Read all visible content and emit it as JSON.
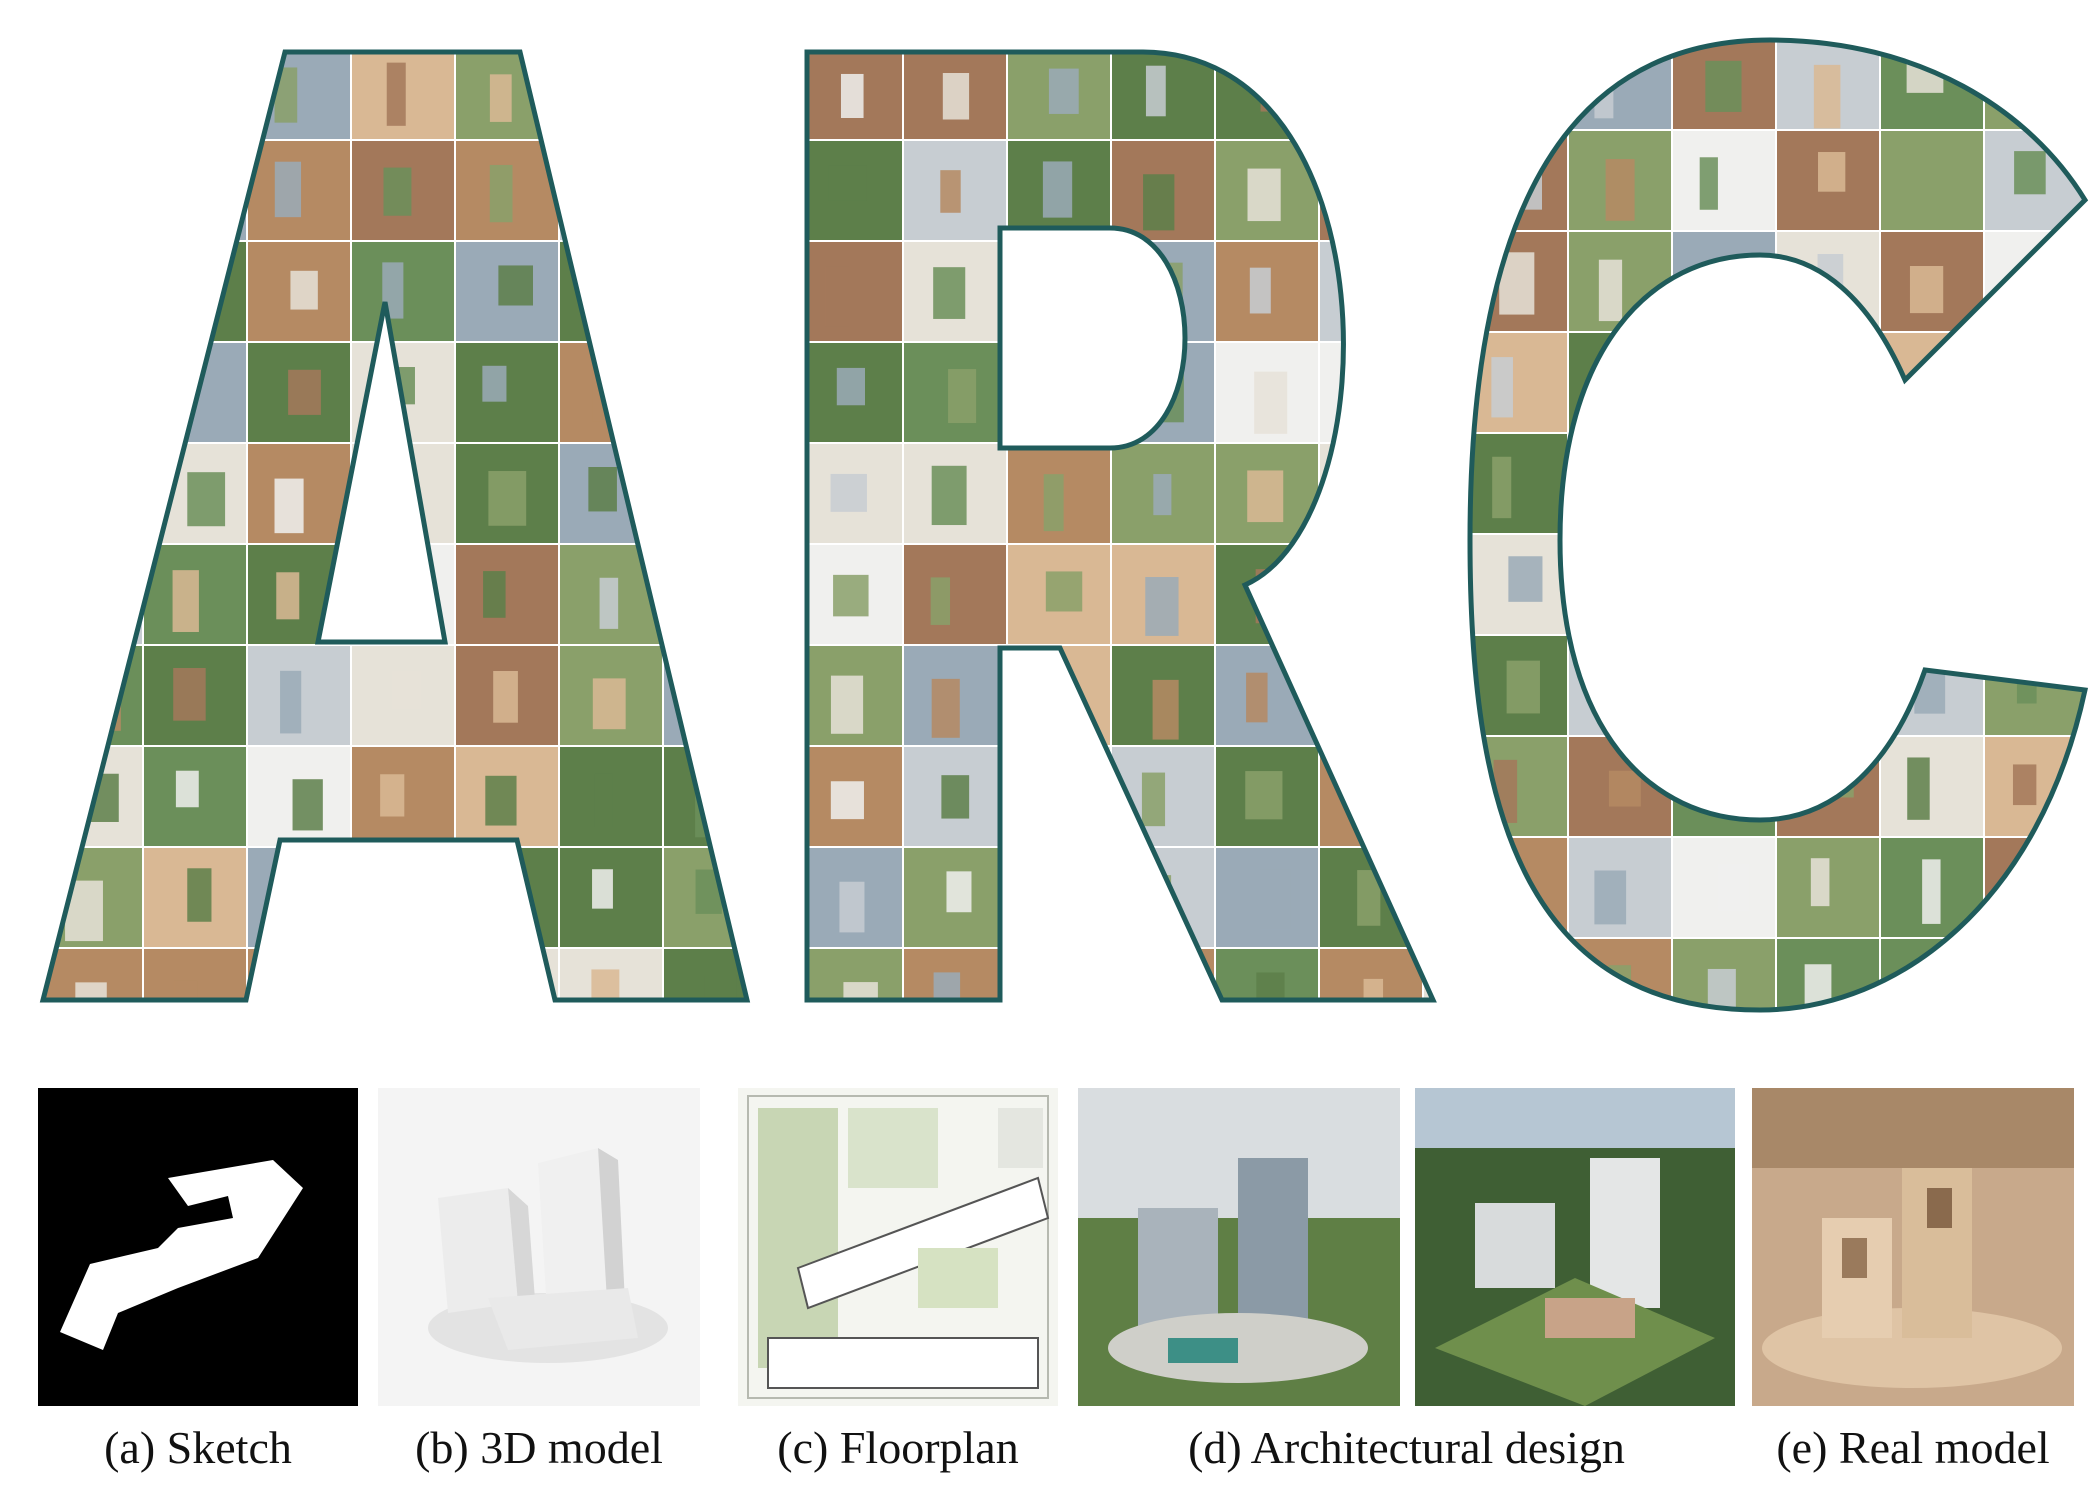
{
  "hero": {
    "letters": [
      "A",
      "R",
      "C"
    ],
    "outline_color": "#1f5b5b",
    "tile_palette": [
      "#5d7f4a",
      "#8aa06a",
      "#c7cdd2",
      "#f0f0ee",
      "#b58a63",
      "#d9b894",
      "#9aaab7",
      "#e6e2d8",
      "#6b8f5a",
      "#a3785a"
    ]
  },
  "panels": [
    {
      "id": "sketch",
      "caption": "(a) Sketch"
    },
    {
      "id": "model3d",
      "caption": "(b) 3D model"
    },
    {
      "id": "floorplan",
      "caption": "(c) Floorplan"
    },
    {
      "id": "design1",
      "caption": ""
    },
    {
      "id": "design2",
      "caption": ""
    },
    {
      "id": "realmodel",
      "caption": "(e) Real model"
    }
  ],
  "captions": {
    "sketch": "(a) Sketch",
    "model3d": "(b) 3D model",
    "floorplan": "(c) Floorplan",
    "design": "(d) Architectural design",
    "realmodel": "(e) Real model"
  }
}
